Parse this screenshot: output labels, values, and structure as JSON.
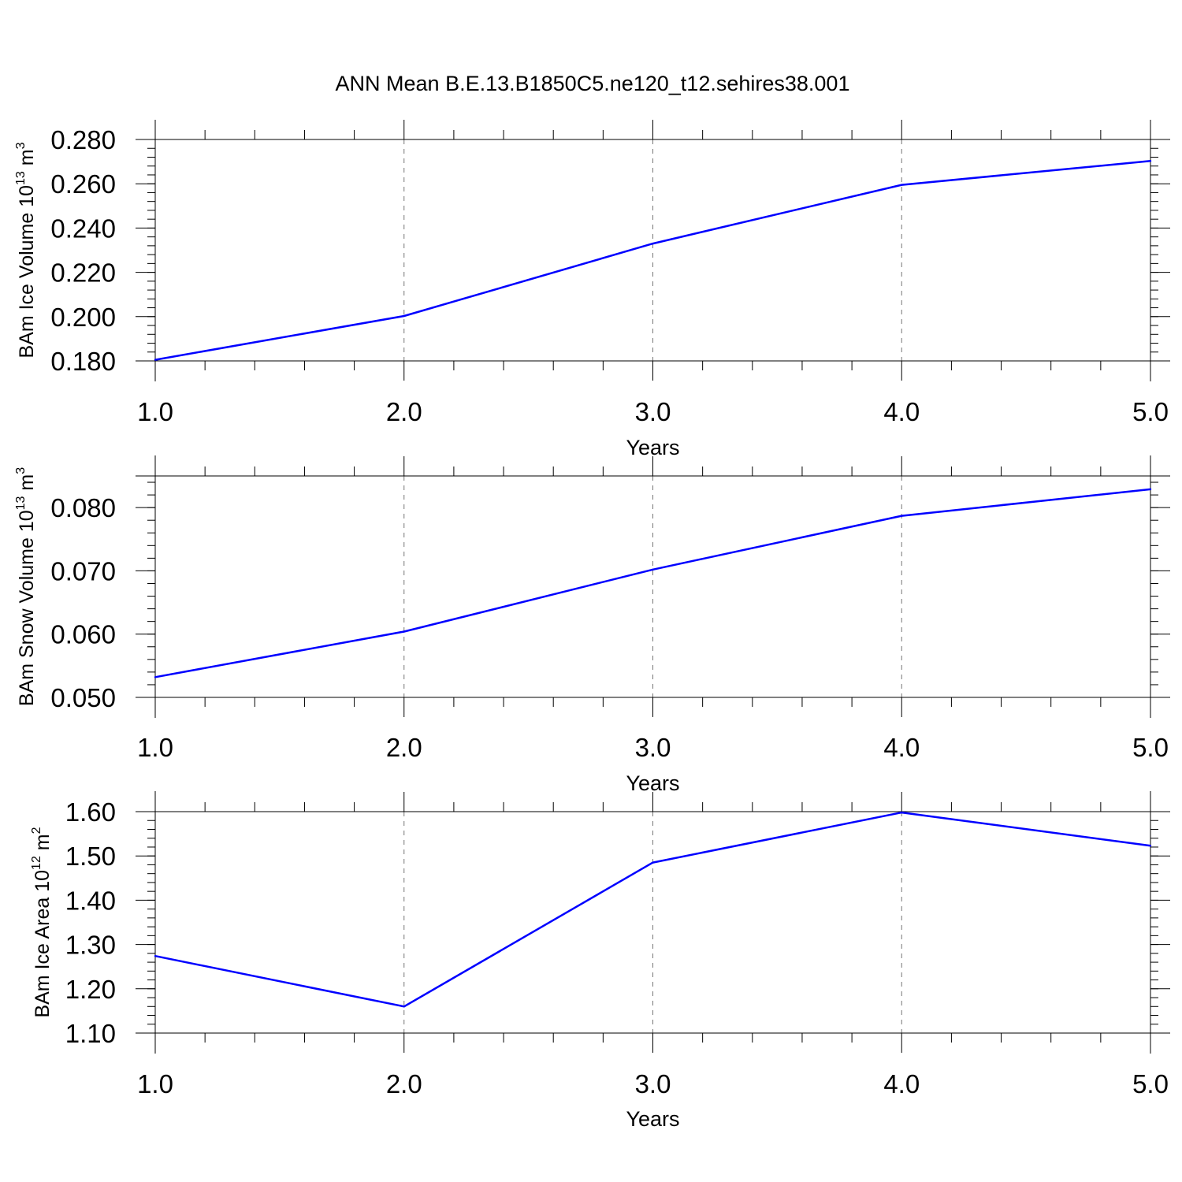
{
  "title": "ANN Mean B.E.13.B1850C5.ne120_t12.sehires38.001",
  "line_color": "#0000ff",
  "chart_data": [
    {
      "type": "line",
      "xlabel": "Years",
      "ylabel": {
        "prefix": "BAm Ice Volume 10",
        "exp1": "13",
        "mid": " m",
        "exp2": "3"
      },
      "x": [
        1.0,
        2.0,
        3.0,
        4.0,
        5.0
      ],
      "y": [
        0.1805,
        0.2003,
        0.233,
        0.2595,
        0.2703
      ],
      "xlim": [
        1.0,
        5.0
      ],
      "ylim": [
        0.18,
        0.28
      ],
      "xticks": [
        "1.0",
        "2.0",
        "3.0",
        "4.0",
        "5.0"
      ],
      "yticks": [
        "0.180",
        "0.200",
        "0.220",
        "0.240",
        "0.260",
        "0.280"
      ],
      "ytick_values": [
        0.18,
        0.2,
        0.22,
        0.24,
        0.26,
        0.28
      ],
      "xgrid": "dashed"
    },
    {
      "type": "line",
      "xlabel": "Years",
      "ylabel": {
        "prefix": "BAm Snow Volume 10",
        "exp1": "13",
        "mid": " m",
        "exp2": "3"
      },
      "x": [
        1.0,
        2.0,
        3.0,
        4.0,
        5.0
      ],
      "y": [
        0.0532,
        0.0604,
        0.0702,
        0.0787,
        0.0829
      ],
      "xlim": [
        1.0,
        5.0
      ],
      "ylim": [
        0.05,
        0.085
      ],
      "xticks": [
        "1.0",
        "2.0",
        "3.0",
        "4.0",
        "5.0"
      ],
      "yticks": [
        "0.050",
        "0.060",
        "0.070",
        "0.080"
      ],
      "ytick_values": [
        0.05,
        0.06,
        0.07,
        0.08
      ],
      "xgrid": "dashed"
    },
    {
      "type": "line",
      "xlabel": "Years",
      "ylabel": {
        "prefix": "BAm Ice Area 10",
        "exp1": "12",
        "mid": " m",
        "exp2": "2"
      },
      "x": [
        1.0,
        2.0,
        3.0,
        4.0,
        5.0
      ],
      "y": [
        1.274,
        1.16,
        1.485,
        1.598,
        1.523
      ],
      "xlim": [
        1.0,
        5.0
      ],
      "ylim": [
        1.1,
        1.6
      ],
      "xticks": [
        "1.0",
        "2.0",
        "3.0",
        "4.0",
        "5.0"
      ],
      "yticks": [
        "1.10",
        "1.20",
        "1.30",
        "1.40",
        "1.50",
        "1.60"
      ],
      "ytick_values": [
        1.1,
        1.2,
        1.3,
        1.4,
        1.5,
        1.6
      ],
      "xgrid": "dashed"
    }
  ]
}
